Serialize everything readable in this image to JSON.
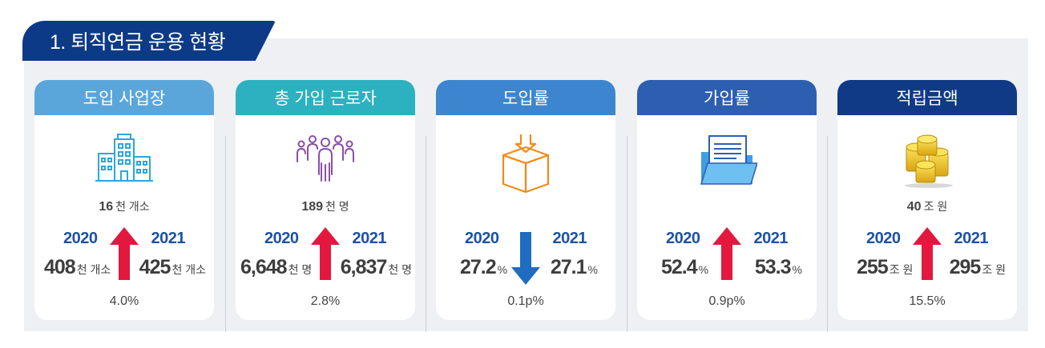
{
  "title": "1. 퇴직연금 운용 현황",
  "cards": [
    {
      "header": "도입 사업장",
      "header_color": "#5aa6db",
      "icon": "building-icon",
      "total": "16",
      "total_unit": "천 개소",
      "year_left": "2020",
      "year_right": "2021",
      "value_left": "408",
      "unit_left": "천 개소",
      "value_right": "425",
      "unit_right": "천 개소",
      "direction": "up",
      "change": "4.0%"
    },
    {
      "header": "총 가입 근로자",
      "header_color": "#2bb1bf",
      "icon": "people-group-icon",
      "total": "189",
      "total_unit": "천 명",
      "year_left": "2020",
      "year_right": "2021",
      "value_left": "6,648",
      "unit_left": "천 명",
      "value_right": "6,837",
      "unit_right": "천 명",
      "direction": "up",
      "change": "2.8%"
    },
    {
      "header": "도입률",
      "header_color": "#3d86cf",
      "icon": "box-download-icon",
      "total": "",
      "total_unit": "",
      "year_left": "2020",
      "year_right": "2021",
      "value_left": "27.2",
      "unit_left": "%",
      "value_right": "27.1",
      "unit_right": "%",
      "direction": "down",
      "change": "0.1p%"
    },
    {
      "header": "가입률",
      "header_color": "#2d5fb0",
      "icon": "folder-document-icon",
      "total": "",
      "total_unit": "",
      "year_left": "2020",
      "year_right": "2021",
      "value_left": "52.4",
      "unit_left": "%",
      "value_right": "53.3",
      "unit_right": "%",
      "direction": "up",
      "change": "0.9p%"
    },
    {
      "header": "적립금액",
      "header_color": "#103a86",
      "icon": "coin-stack-icon",
      "total": "40",
      "total_unit": "조 원",
      "year_left": "2020",
      "year_right": "2021",
      "value_left": "255",
      "unit_left": "조 원",
      "value_right": "295",
      "unit_right": "조 원",
      "direction": "up",
      "change": "15.5%"
    }
  ],
  "colors": {
    "arrow_up": "#e2183f",
    "arrow_down": "#1f6cc0",
    "year": "#1b52a8",
    "title_bg": "#0d3a86"
  }
}
